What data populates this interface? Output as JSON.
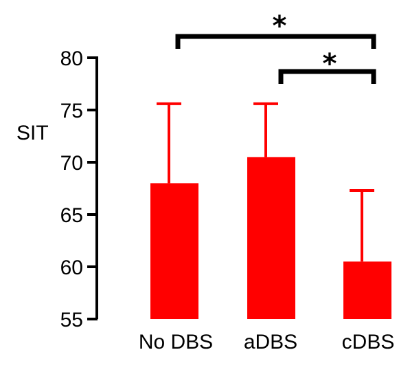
{
  "chart_data": {
    "type": "bar",
    "title": "",
    "xlabel": "",
    "ylabel": "SIT",
    "categories": [
      "No DBS",
      "aDBS",
      "cDBS"
    ],
    "values": [
      68,
      70.5,
      60.5
    ],
    "error_upper": [
      75.6,
      75.6,
      67.3
    ],
    "ylim": [
      55,
      80
    ],
    "yticks": [
      55,
      60,
      65,
      70,
      75,
      80
    ],
    "ytick_labels": [
      "55",
      "60",
      "65",
      "70",
      "75",
      "80"
    ],
    "bar_color": "#ff0000",
    "grid": false,
    "legend": "none",
    "significance": [
      {
        "from": "No DBS",
        "to": "cDBS",
        "label": "*"
      },
      {
        "from": "aDBS",
        "to": "cDBS",
        "label": "*"
      }
    ]
  }
}
